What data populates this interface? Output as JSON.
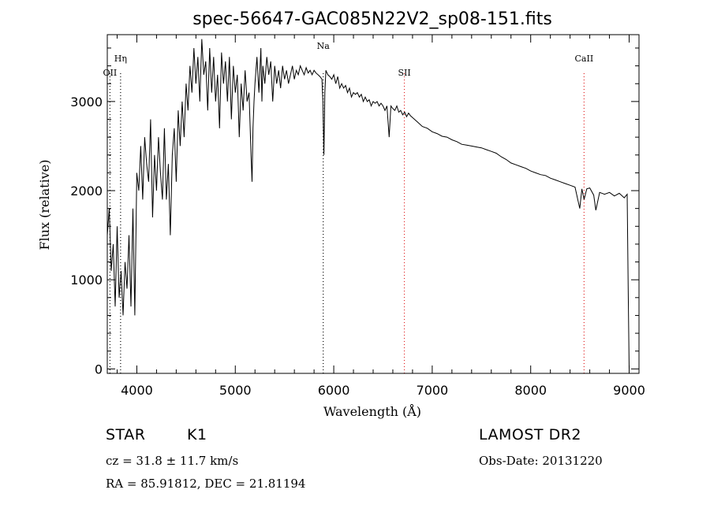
{
  "chart_data": {
    "type": "line",
    "title": "spec-56647-GAC085N22V2_sp08-151.fits",
    "xlabel": "Wavelength (Å)",
    "ylabel": "Flux (relative)",
    "xlim": [
      3700,
      9100
    ],
    "ylim": [
      -50,
      3750
    ],
    "xticks": [
      4000,
      5000,
      6000,
      7000,
      8000,
      9000
    ],
    "yticks": [
      0,
      1000,
      2000,
      3000
    ],
    "grid": false,
    "series": [
      {
        "name": "flux",
        "x": [
          3700,
          3720,
          3740,
          3760,
          3780,
          3800,
          3820,
          3840,
          3860,
          3880,
          3900,
          3920,
          3940,
          3960,
          3980,
          4000,
          4020,
          4040,
          4060,
          4080,
          4100,
          4120,
          4140,
          4160,
          4180,
          4200,
          4220,
          4240,
          4260,
          4280,
          4300,
          4320,
          4340,
          4360,
          4380,
          4400,
          4420,
          4440,
          4460,
          4480,
          4500,
          4520,
          4540,
          4560,
          4580,
          4600,
          4620,
          4640,
          4660,
          4680,
          4700,
          4720,
          4740,
          4760,
          4780,
          4800,
          4820,
          4840,
          4860,
          4880,
          4900,
          4920,
          4940,
          4960,
          4980,
          5000,
          5020,
          5040,
          5060,
          5080,
          5100,
          5120,
          5140,
          5160,
          5170,
          5180,
          5190,
          5200,
          5220,
          5240,
          5260,
          5270,
          5280,
          5300,
          5320,
          5340,
          5360,
          5380,
          5400,
          5420,
          5440,
          5460,
          5480,
          5500,
          5520,
          5540,
          5560,
          5580,
          5600,
          5620,
          5640,
          5660,
          5680,
          5700,
          5720,
          5740,
          5760,
          5780,
          5800,
          5820,
          5840,
          5860,
          5880,
          5890,
          5900,
          5910,
          5920,
          5940,
          5960,
          5980,
          6000,
          6020,
          6040,
          6060,
          6080,
          6100,
          6120,
          6140,
          6160,
          6180,
          6200,
          6220,
          6240,
          6260,
          6280,
          6300,
          6320,
          6340,
          6360,
          6380,
          6400,
          6420,
          6440,
          6460,
          6480,
          6500,
          6520,
          6540,
          6563,
          6580,
          6600,
          6620,
          6640,
          6660,
          6680,
          6700,
          6720,
          6740,
          6760,
          6780,
          6800,
          6850,
          6900,
          6950,
          7000,
          7050,
          7100,
          7150,
          7200,
          7250,
          7300,
          7350,
          7400,
          7450,
          7500,
          7550,
          7600,
          7650,
          7700,
          7750,
          7800,
          7850,
          7900,
          7950,
          8000,
          8050,
          8100,
          8150,
          8200,
          8250,
          8300,
          8350,
          8400,
          8450,
          8498,
          8520,
          8542,
          8570,
          8600,
          8640,
          8662,
          8700,
          8750,
          8800,
          8850,
          8900,
          8950,
          8980,
          8990,
          9000
        ],
        "y": [
          1500,
          1800,
          1100,
          1400,
          700,
          1600,
          800,
          1100,
          600,
          1200,
          900,
          1500,
          700,
          1800,
          600,
          2200,
          2000,
          2500,
          1900,
          2600,
          2300,
          2100,
          2800,
          1700,
          2400,
          2000,
          2600,
          2200,
          1900,
          2700,
          1900,
          2300,
          1500,
          2400,
          2700,
          2100,
          2900,
          2500,
          3000,
          2600,
          3200,
          2900,
          3400,
          3100,
          3600,
          3200,
          3500,
          3000,
          3700,
          3300,
          3450,
          2900,
          3600,
          3100,
          3500,
          3000,
          3300,
          2700,
          3550,
          3200,
          3450,
          3000,
          3500,
          2800,
          3400,
          3100,
          3300,
          2600,
          3200,
          2900,
          3350,
          3000,
          3100,
          2400,
          2100,
          2700,
          3000,
          3200,
          3500,
          3100,
          3600,
          3000,
          3400,
          3200,
          3500,
          3300,
          3450,
          3000,
          3400,
          3200,
          3350,
          3150,
          3400,
          3250,
          3350,
          3200,
          3300,
          3400,
          3250,
          3350,
          3300,
          3400,
          3350,
          3300,
          3380,
          3320,
          3350,
          3300,
          3350,
          3320,
          3300,
          3280,
          3250,
          3000,
          2400,
          3100,
          3350,
          3300,
          3280,
          3250,
          3300,
          3200,
          3280,
          3150,
          3200,
          3150,
          3180,
          3100,
          3150,
          3050,
          3100,
          3080,
          3100,
          3050,
          3080,
          3000,
          3050,
          3000,
          3020,
          2950,
          3000,
          2980,
          3000,
          2950,
          2980,
          2950,
          2900,
          2950,
          2600,
          2950,
          2920,
          2900,
          2950,
          2880,
          2900,
          2850,
          2880,
          2830,
          2870,
          2840,
          2820,
          2770,
          2720,
          2700,
          2660,
          2640,
          2610,
          2600,
          2570,
          2550,
          2520,
          2510,
          2500,
          2490,
          2480,
          2460,
          2440,
          2420,
          2380,
          2350,
          2310,
          2290,
          2270,
          2250,
          2220,
          2200,
          2180,
          2170,
          2140,
          2120,
          2100,
          2080,
          2060,
          2040,
          1800,
          2020,
          1900,
          2020,
          2030,
          1950,
          1780,
          1980,
          1960,
          1980,
          1940,
          1970,
          1920,
          1960,
          900,
          0
        ]
      }
    ],
    "lines": [
      {
        "label": "Hη",
        "x": 3835,
        "color": "#000000",
        "label_row": 0
      },
      {
        "label": "OII",
        "x": 3727,
        "color": "#000000",
        "label_row": 1
      },
      {
        "label": "Na",
        "x": 5893,
        "color": "#000000",
        "label_row": 2
      },
      {
        "label": "SII",
        "x": 6717,
        "color": "#e02020",
        "label_row": 1
      },
      {
        "label": "CaII",
        "x": 8542,
        "color": "#e02020",
        "label_row": 0
      }
    ]
  },
  "info": {
    "class_label": "STAR",
    "subclass": "K1",
    "survey": "LAMOST DR2",
    "cz_text": "cz = 31.8 ± 11.7 km/s",
    "obs_date": "Obs-Date: 20131220",
    "coords": "RA =  85.91812, DEC =  21.81194"
  }
}
